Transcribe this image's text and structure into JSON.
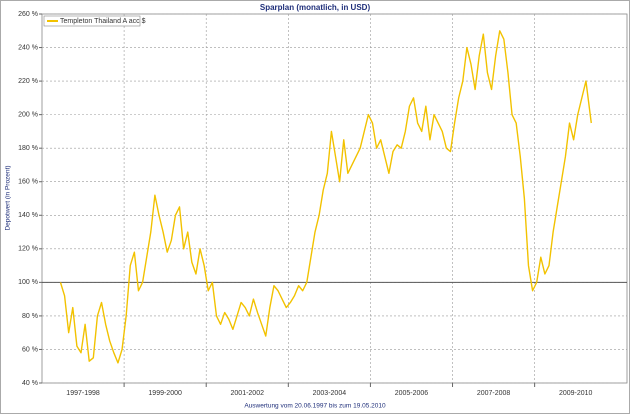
{
  "chart_data": {
    "type": "line",
    "title": "Sparplan (monatlich, in USD)",
    "ylabel": "Depotwert (in Prozent)",
    "xlabel": "Auswertung vom 20.06.1997 bis zum 19.05.2010",
    "xlim": [
      1997,
      2011.25
    ],
    "ylim": [
      40,
      260
    ],
    "yticks": [
      {
        "value": 40,
        "label": "40 %"
      },
      {
        "value": 60,
        "label": "60 %"
      },
      {
        "value": 80,
        "label": "80 %"
      },
      {
        "value": 100,
        "label": "100 %"
      },
      {
        "value": 120,
        "label": "120 %"
      },
      {
        "value": 140,
        "label": "140 %"
      },
      {
        "value": 160,
        "label": "160 %"
      },
      {
        "value": 180,
        "label": "180 %"
      },
      {
        "value": 200,
        "label": "200 %"
      },
      {
        "value": 220,
        "label": "220 %"
      },
      {
        "value": 240,
        "label": "240 %"
      },
      {
        "value": 260,
        "label": "260 %"
      }
    ],
    "xgrid": [
      1999,
      2001,
      2003,
      2005,
      2007,
      2009
    ],
    "x_labels": [
      {
        "value": 1998,
        "label": "1997-1998"
      },
      {
        "value": 2000,
        "label": "1999-2000"
      },
      {
        "value": 2002,
        "label": "2001-2002"
      },
      {
        "value": 2004,
        "label": "2003-2004"
      },
      {
        "value": 2006,
        "label": "2005-2006"
      },
      {
        "value": 2008,
        "label": "2007-2008"
      },
      {
        "value": 2010,
        "label": "2009-2010"
      }
    ],
    "grid": true,
    "reference_line": 100,
    "legend": "top-left",
    "x": [
      1997.45,
      1997.55,
      1997.65,
      1997.75,
      1997.85,
      1997.95,
      1998.05,
      1998.15,
      1998.25,
      1998.35,
      1998.45,
      1998.55,
      1998.65,
      1998.75,
      1998.85,
      1998.95,
      1999.05,
      1999.15,
      1999.25,
      1999.35,
      1999.45,
      1999.55,
      1999.65,
      1999.75,
      1999.85,
      1999.95,
      2000.05,
      2000.15,
      2000.25,
      2000.35,
      2000.45,
      2000.55,
      2000.65,
      2000.75,
      2000.85,
      2000.95,
      2001.05,
      2001.15,
      2001.25,
      2001.35,
      2001.45,
      2001.55,
      2001.65,
      2001.75,
      2001.85,
      2001.95,
      2002.05,
      2002.15,
      2002.25,
      2002.35,
      2002.45,
      2002.55,
      2002.65,
      2002.75,
      2002.85,
      2002.95,
      2003.05,
      2003.15,
      2003.25,
      2003.35,
      2003.45,
      2003.55,
      2003.65,
      2003.75,
      2003.85,
      2003.95,
      2004.05,
      2004.15,
      2004.25,
      2004.35,
      2004.45,
      2004.55,
      2004.65,
      2004.75,
      2004.85,
      2004.95,
      2005.05,
      2005.15,
      2005.25,
      2005.35,
      2005.45,
      2005.55,
      2005.65,
      2005.75,
      2005.85,
      2005.95,
      2006.05,
      2006.15,
      2006.25,
      2006.35,
      2006.45,
      2006.55,
      2006.65,
      2006.75,
      2006.85,
      2006.95,
      2007.05,
      2007.15,
      2007.25,
      2007.35,
      2007.45,
      2007.55,
      2007.65,
      2007.75,
      2007.85,
      2007.95,
      2008.05,
      2008.15,
      2008.25,
      2008.35,
      2008.45,
      2008.55,
      2008.65,
      2008.75,
      2008.85,
      2008.95,
      2009.05,
      2009.15,
      2009.25,
      2009.35,
      2009.45,
      2009.55,
      2009.65,
      2009.75,
      2009.85,
      2009.95,
      2010.05,
      2010.15,
      2010.25,
      2010.38
    ],
    "series": [
      {
        "name": "Templeton Thailand A acc $",
        "color": "#f2c200",
        "values": [
          100,
          92,
          70,
          85,
          62,
          58,
          75,
          53,
          55,
          80,
          88,
          75,
          65,
          58,
          52,
          60,
          80,
          110,
          118,
          95,
          100,
          115,
          130,
          152,
          140,
          130,
          118,
          125,
          140,
          145,
          120,
          130,
          112,
          105,
          120,
          110,
          95,
          100,
          80,
          75,
          82,
          78,
          72,
          80,
          88,
          85,
          80,
          90,
          82,
          75,
          68,
          85,
          98,
          95,
          90,
          85,
          88,
          92,
          98,
          95,
          100,
          115,
          130,
          140,
          155,
          165,
          190,
          175,
          160,
          185,
          165,
          170,
          175,
          180,
          190,
          200,
          195,
          180,
          185,
          175,
          165,
          178,
          182,
          180,
          190,
          205,
          210,
          195,
          190,
          205,
          185,
          200,
          195,
          190,
          180,
          178,
          195,
          210,
          220,
          240,
          230,
          215,
          235,
          248,
          225,
          215,
          235,
          250,
          245,
          225,
          200,
          195,
          175,
          150,
          110,
          95,
          100,
          115,
          105,
          110,
          130,
          145,
          160,
          175,
          195,
          185,
          200,
          210,
          220,
          195
        ]
      }
    ]
  }
}
